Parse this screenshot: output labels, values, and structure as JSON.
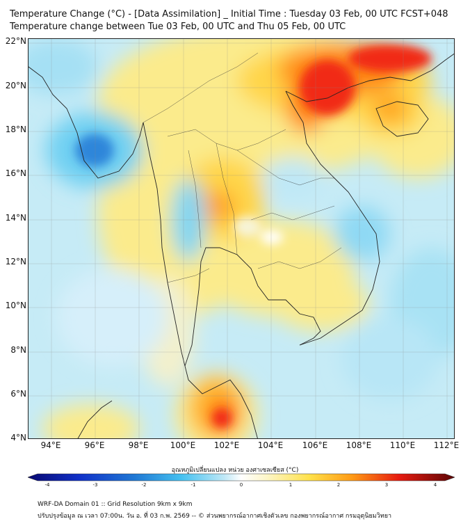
{
  "header": {
    "line1": "Temperature Change (°C) - [Data Assimilation] _ Initial Time : Tuesday 03 Feb, 00 UTC FCST+048",
    "line2": "Temperature change between Tue 03 Feb, 00 UTC and Thu 05 Feb, 00 UTC"
  },
  "map": {
    "lat_labels": [
      "22°N",
      "20°N",
      "18°N",
      "16°N",
      "14°N",
      "12°N",
      "10°N",
      "8°N",
      "6°N",
      "4°N"
    ],
    "lon_labels": [
      "94°E",
      "96°E",
      "98°E",
      "100°E",
      "102°E",
      "104°E",
      "106°E",
      "108°E",
      "110°E",
      "112°E"
    ],
    "lat_range": [
      4,
      22.2
    ],
    "lon_range": [
      93,
      112.4
    ],
    "field_colors": {
      "strong_cool": "#1f78d4",
      "cool": "#45c1f0",
      "light_cool": "#bfe8f6",
      "neutral": "#f7f4d8",
      "warm_light": "#fdf2a6",
      "warm": "#ffd54a",
      "hot": "#ff9a14",
      "hottest": "#e61a10",
      "coast": "#222222"
    }
  },
  "colorbar": {
    "title": "อุณหภูมิเปลี่ยนแปลง หน่วย องศาเซลเซียส (°C)",
    "tick_labels": [
      "-4",
      "-3",
      "-2",
      "-1",
      "0",
      "1",
      "2",
      "3",
      "4"
    ],
    "range": [
      -4,
      4
    ]
  },
  "footer": {
    "line1": "WRF-DA Domain 01 :: Grid Resolution 9km x 9km",
    "line2": "ปรับปรุงข้อมูล ณ เวลา 07:00น. วัน อ. ที่ 03 ก.พ. 2569 -- © ส่วนพยากรณ์อากาศเชิงตัวเลข กองพยากรณ์อากาศ กรมอุตุนิยมวิทยา"
  }
}
